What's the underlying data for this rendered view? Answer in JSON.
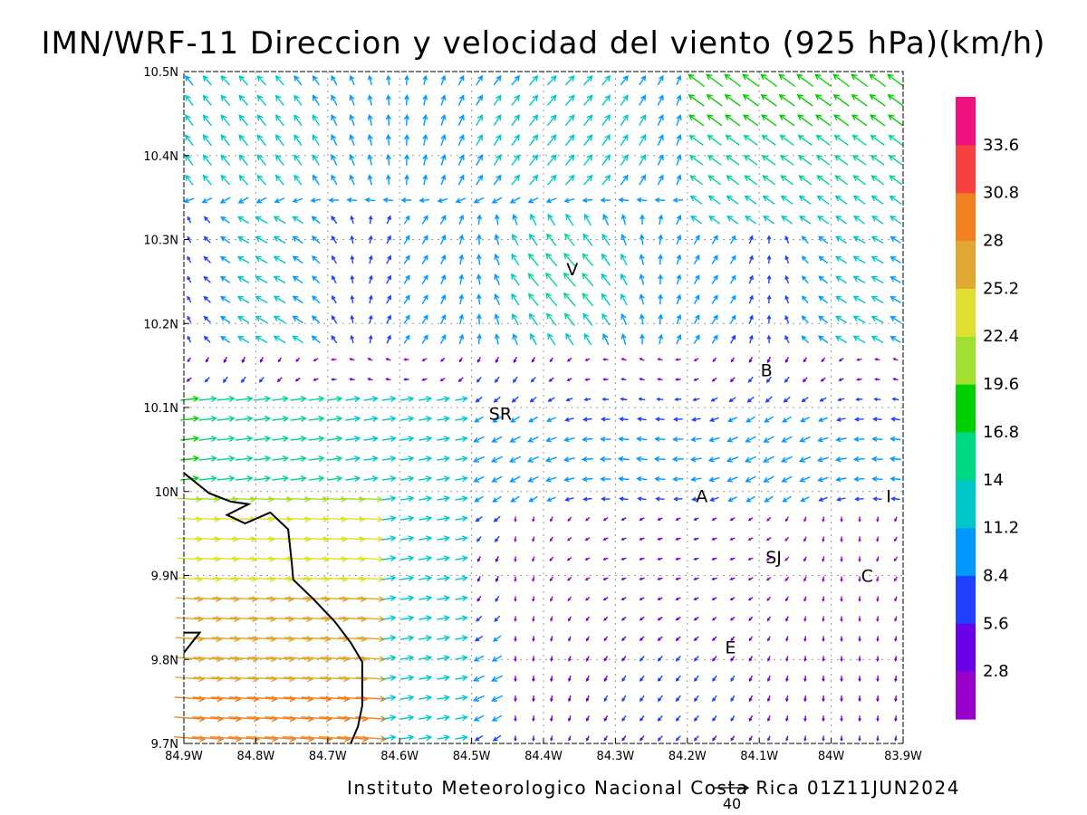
{
  "title": "IMN/WRF-11 Direccion y velocidad del viento (925 hPa)(km/h)",
  "footer": "Instituto Meteorologico Nacional Costa Rica 01Z11JUN2024",
  "reference_vector": {
    "value": "40"
  },
  "chart_data": {
    "type": "vector_field",
    "level": "925 hPa",
    "units": "km/h",
    "lon_range": [
      -84.9,
      -83.9
    ],
    "lat_range": [
      9.7,
      10.5
    ],
    "x_tick_labels": [
      "84.9W",
      "84.8W",
      "84.7W",
      "84.6W",
      "84.5W",
      "84.4W",
      "84.3W",
      "84.2W",
      "84.1W",
      "84W",
      "83.9W"
    ],
    "y_tick_labels": [
      "9.7N",
      "9.8N",
      "9.9N",
      "10N",
      "10.1N",
      "10.2N",
      "10.3N",
      "10.4N",
      "10.5N"
    ],
    "grid": true,
    "colorbar": {
      "labels": [
        "2.8",
        "5.6",
        "8.4",
        "11.2",
        "14",
        "16.8",
        "19.6",
        "22.4",
        "25.2",
        "28",
        "30.8",
        "33.6"
      ],
      "colors": [
        "#9900cc",
        "#6a00e6",
        "#2040ff",
        "#0099ff",
        "#00c8c8",
        "#00d884",
        "#00d000",
        "#a0e030",
        "#e0e030",
        "#e0a830",
        "#f08020",
        "#f84040",
        "#f01080"
      ]
    },
    "locations": [
      {
        "label": "V",
        "lon": -84.36,
        "lat": 10.265
      },
      {
        "label": "B",
        "lon": -84.09,
        "lat": 10.145
      },
      {
        "label": "SR",
        "lon": -84.46,
        "lat": 10.093
      },
      {
        "label": "A",
        "lon": -84.18,
        "lat": 9.995
      },
      {
        "label": "I",
        "lon": -83.92,
        "lat": 9.995
      },
      {
        "label": "SJ",
        "lon": -84.08,
        "lat": 9.922
      },
      {
        "label": "C",
        "lon": -83.95,
        "lat": 9.9
      },
      {
        "label": "E",
        "lon": -84.14,
        "lat": 9.815
      }
    ],
    "coastline": [
      [
        -84.9,
        10.022
      ],
      [
        -84.865,
        9.998
      ],
      [
        -84.835,
        9.988
      ],
      [
        -84.81,
        9.985
      ],
      [
        -84.84,
        9.972
      ],
      [
        -84.815,
        9.962
      ],
      [
        -84.78,
        9.975
      ],
      [
        -84.755,
        9.955
      ],
      [
        -84.75,
        9.915
      ],
      [
        -84.748,
        9.895
      ],
      [
        -84.72,
        9.872
      ],
      [
        -84.69,
        9.845
      ],
      [
        -84.668,
        9.82
      ],
      [
        -84.652,
        9.797
      ],
      [
        -84.652,
        9.745
      ],
      [
        -84.658,
        9.72
      ],
      [
        -84.668,
        9.7
      ]
    ],
    "coastline_inlet": [
      [
        -84.9,
        9.808
      ],
      [
        -84.878,
        9.832
      ],
      [
        -84.9,
        9.832
      ]
    ]
  }
}
